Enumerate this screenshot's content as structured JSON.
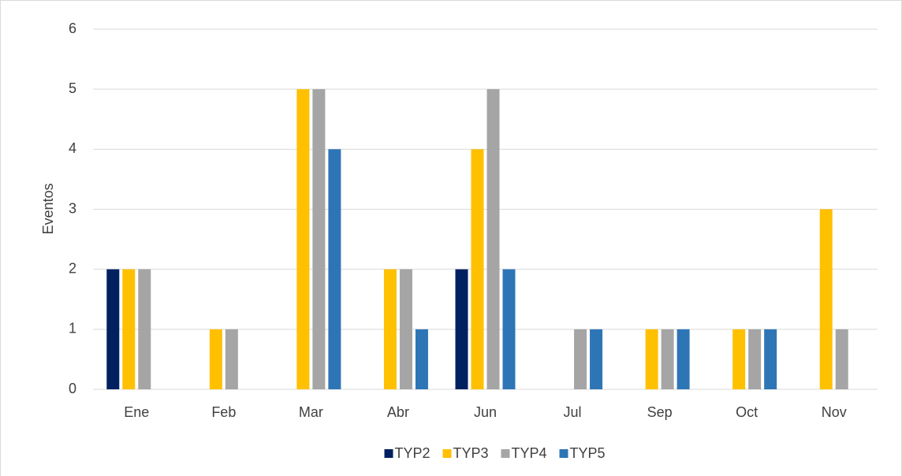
{
  "chart_data": {
    "type": "bar",
    "categories": [
      "Ene",
      "Feb",
      "Mar",
      "Abr",
      "Jun",
      "Jul",
      "Sep",
      "Oct",
      "Nov"
    ],
    "series": [
      {
        "name": "TYP2",
        "color": "#002060",
        "values": [
          2,
          0,
          0,
          0,
          2,
          0,
          0,
          0,
          0
        ]
      },
      {
        "name": "TYP3",
        "color": "#FFC000",
        "values": [
          2,
          1,
          5,
          2,
          4,
          0,
          1,
          1,
          3
        ]
      },
      {
        "name": "TYP4",
        "color": "#A5A5A5",
        "values": [
          2,
          1,
          5,
          2,
          5,
          1,
          1,
          1,
          1
        ]
      },
      {
        "name": "TYP5",
        "color": "#2E75B6",
        "values": [
          0,
          0,
          4,
          1,
          2,
          1,
          1,
          1,
          0
        ]
      }
    ],
    "y_label": "Eventos",
    "ylim": [
      0,
      6
    ],
    "yticks": [
      0,
      1,
      2,
      3,
      4,
      5,
      6
    ],
    "grid": true,
    "legend": "bottom"
  }
}
